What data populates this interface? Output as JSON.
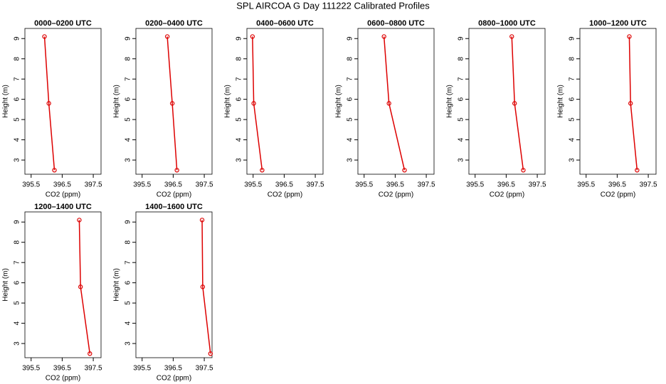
{
  "title": "SPL AIRCOA G  Day 111222  Calibrated Profiles",
  "chart_data": [
    {
      "type": "line",
      "title": "0000–0200 UTC",
      "xlabel": "CO2 (ppm)",
      "ylabel": "Height (m)",
      "color": "#dd0000",
      "x": [
        395.93,
        396.07,
        396.25
      ],
      "values": [
        9.1,
        5.8,
        2.5
      ],
      "xlim": [
        395.3,
        397.75
      ],
      "xticks": [
        395.5,
        396.5,
        397.5
      ],
      "ylim": [
        2.3,
        9.5
      ],
      "yticks": [
        3,
        4,
        5,
        6,
        7,
        8,
        9
      ]
    },
    {
      "type": "line",
      "title": "0200–0400 UTC",
      "xlabel": "CO2 (ppm)",
      "ylabel": "Height (m)",
      "color": "#dd0000",
      "x": [
        396.31,
        396.47,
        396.62
      ],
      "values": [
        9.1,
        5.8,
        2.5
      ],
      "xlim": [
        395.3,
        397.75
      ],
      "xticks": [
        395.5,
        396.5,
        397.5
      ],
      "ylim": [
        2.3,
        9.5
      ],
      "yticks": [
        3,
        4,
        5,
        6,
        7,
        8,
        9
      ]
    },
    {
      "type": "line",
      "title": "0400–0600 UTC",
      "xlabel": "CO2 (ppm)",
      "ylabel": "Height (m)",
      "color": "#dd0000",
      "x": [
        395.48,
        395.52,
        395.79
      ],
      "values": [
        9.1,
        5.8,
        2.5
      ],
      "xlim": [
        395.3,
        397.75
      ],
      "xticks": [
        395.5,
        396.5,
        397.5
      ],
      "ylim": [
        2.3,
        9.5
      ],
      "yticks": [
        3,
        4,
        5,
        6,
        7,
        8,
        9
      ]
    },
    {
      "type": "line",
      "title": "0600–0800 UTC",
      "xlabel": "CO2 (ppm)",
      "ylabel": "Height (m)",
      "color": "#dd0000",
      "x": [
        396.14,
        396.3,
        396.8
      ],
      "values": [
        9.1,
        5.8,
        2.5
      ],
      "xlim": [
        395.3,
        397.75
      ],
      "xticks": [
        395.5,
        396.5,
        397.5
      ],
      "ylim": [
        2.3,
        9.5
      ],
      "yticks": [
        3,
        4,
        5,
        6,
        7,
        8,
        9
      ]
    },
    {
      "type": "line",
      "title": "0800–1000 UTC",
      "xlabel": "CO2 (ppm)",
      "ylabel": "Height (m)",
      "color": "#dd0000",
      "x": [
        396.68,
        396.77,
        397.05
      ],
      "values": [
        9.1,
        5.8,
        2.5
      ],
      "xlim": [
        395.3,
        397.75
      ],
      "xticks": [
        395.5,
        396.5,
        397.5
      ],
      "ylim": [
        2.3,
        9.5
      ],
      "yticks": [
        3,
        4,
        5,
        6,
        7,
        8,
        9
      ]
    },
    {
      "type": "line",
      "title": "1000–1200 UTC",
      "xlabel": "CO2 (ppm)",
      "ylabel": "Height (m)",
      "color": "#dd0000",
      "x": [
        396.89,
        396.93,
        397.14
      ],
      "values": [
        9.1,
        5.8,
        2.5
      ],
      "xlim": [
        395.3,
        397.75
      ],
      "xticks": [
        395.5,
        396.5,
        397.5
      ],
      "ylim": [
        2.3,
        9.5
      ],
      "yticks": [
        3,
        4,
        5,
        6,
        7,
        8,
        9
      ]
    },
    {
      "type": "line",
      "title": "1200–1400 UTC",
      "xlabel": "CO2 (ppm)",
      "ylabel": "Height (m)",
      "color": "#dd0000",
      "x": [
        397.05,
        397.09,
        397.39
      ],
      "values": [
        9.1,
        5.8,
        2.5
      ],
      "xlim": [
        395.3,
        397.75
      ],
      "xticks": [
        395.5,
        396.5,
        397.5
      ],
      "ylim": [
        2.3,
        9.5
      ],
      "yticks": [
        3,
        4,
        5,
        6,
        7,
        8,
        9
      ]
    },
    {
      "type": "line",
      "title": "1400–1600 UTC",
      "xlabel": "CO2 (ppm)",
      "ylabel": "Height (m)",
      "color": "#dd0000",
      "x": [
        397.43,
        397.45,
        397.7
      ],
      "values": [
        9.1,
        5.8,
        2.5
      ],
      "xlim": [
        395.3,
        397.75
      ],
      "xticks": [
        395.5,
        396.5,
        397.5
      ],
      "ylim": [
        2.3,
        9.5
      ],
      "yticks": [
        3,
        4,
        5,
        6,
        7,
        8,
        9
      ]
    }
  ]
}
